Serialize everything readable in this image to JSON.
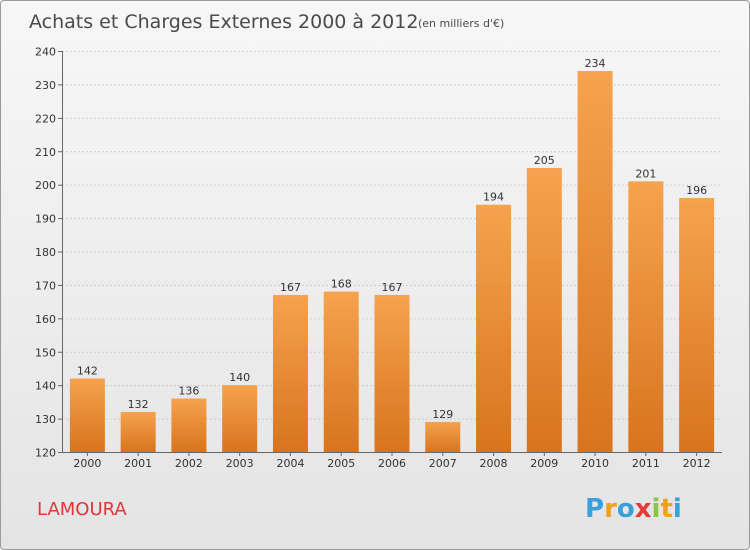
{
  "chart_data": {
    "type": "bar",
    "title": "Achats et Charges Externes 2000 à 2012",
    "subtitle": "(en milliers d'€)",
    "categories": [
      "2000",
      "2001",
      "2002",
      "2003",
      "2004",
      "2005",
      "2006",
      "2007",
      "2008",
      "2009",
      "2010",
      "2011",
      "2012"
    ],
    "values": [
      142,
      132,
      136,
      140,
      167,
      168,
      167,
      129,
      194,
      205,
      234,
      201,
      196
    ],
    "ylim": [
      120,
      240
    ],
    "yticks": [
      120,
      130,
      140,
      150,
      160,
      170,
      180,
      190,
      200,
      210,
      220,
      230,
      240
    ],
    "grid": true,
    "bar_color": "#f0923a"
  },
  "city_label": "LAMOURA",
  "logo": {
    "letters": [
      "P",
      "r",
      "o",
      "x",
      "i",
      "t",
      "i"
    ],
    "colors": [
      "#3aa0dc",
      "#f0a21e",
      "#3aa0dc",
      "#e33b3b",
      "#8cc63f",
      "#f0a21e",
      "#3aa0dc"
    ]
  }
}
